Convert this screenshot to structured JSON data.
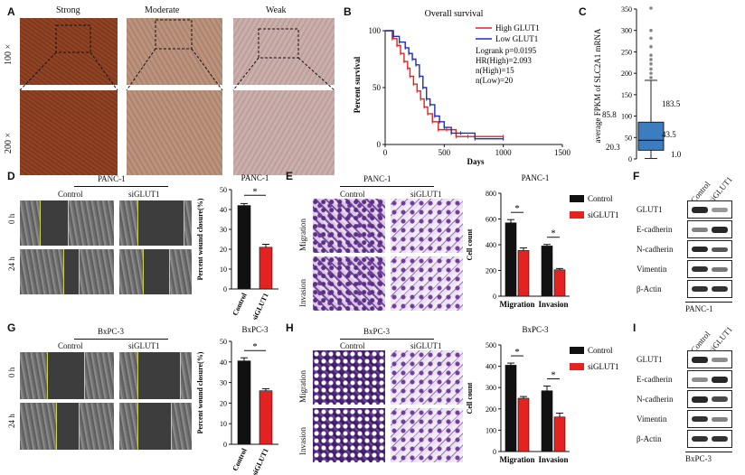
{
  "panels": {
    "A": {
      "label": "A",
      "cols": [
        "Strong",
        "Moderate",
        "Weak"
      ],
      "rows": [
        "100 ×",
        "200 ×"
      ]
    },
    "B": {
      "label": "B",
      "title": "Overall survival",
      "ylabel": "Percent survival",
      "xlabel": "Days",
      "xticks": [
        "0",
        "500",
        "1000",
        "1500"
      ],
      "yticks": [
        "0",
        "50",
        "100"
      ],
      "legend": [
        "High GLUT1",
        "Low GLUT1"
      ],
      "stats": [
        "Logrank p=0.0195",
        "HR(High)=2.093",
        "n(High)=15",
        "n(Low)=20"
      ],
      "colors": {
        "high": "#e32222",
        "low": "#1f2dbf"
      }
    },
    "C": {
      "label": "C",
      "ylabel": "average FPKM of SLC2A1 mRNA",
      "yticks": [
        "0",
        "50",
        "100",
        "150",
        "200",
        "250",
        "300",
        "350"
      ],
      "annotations": {
        "upper_whisker": "183.5",
        "median": "43.5",
        "min": "1.0",
        "q3": "85.8",
        "q1": "20.3"
      },
      "color": "#3b7dbf"
    },
    "D": {
      "label": "D",
      "cell_line": "PANC-1",
      "conditions": [
        "Control",
        "siGLUT1"
      ],
      "rows": [
        "0 h",
        "24 h"
      ],
      "chart_title": "PANC-1",
      "ylabel": "Percent wound closure(%)",
      "sig": "*"
    },
    "E": {
      "label": "E",
      "cell_line": "PANC-1",
      "conditions": [
        "Control",
        "siGLUT1"
      ],
      "rows": [
        "Migration",
        "Invasion"
      ],
      "chart_title": "PANC-1",
      "ylabel": "Cell count",
      "legend": [
        "Control",
        "siGLUT1"
      ],
      "sig": "*"
    },
    "F": {
      "label": "F",
      "lanes": [
        "Control",
        "siGLUT1"
      ],
      "proteins": [
        "GLUT1",
        "E-cadherin",
        "N-cadherin",
        "Vimentin",
        "β-Actin"
      ],
      "cell_line": "PANC-1"
    },
    "G": {
      "label": "G",
      "cell_line": "BxPC-3",
      "conditions": [
        "Control",
        "siGLUT1"
      ],
      "rows": [
        "0 h",
        "24 h"
      ],
      "chart_title": "BxPC-3",
      "ylabel": "Percent wound closure(%)",
      "sig": "*"
    },
    "H": {
      "label": "H",
      "cell_line": "BxPC-3",
      "conditions": [
        "Control",
        "siGLUT1"
      ],
      "rows": [
        "Migration",
        "Invasion"
      ],
      "chart_title": "BxPC-3",
      "ylabel": "Cell count",
      "legend": [
        "Control",
        "siGLUT1"
      ],
      "sig": "*"
    },
    "I": {
      "label": "I",
      "lanes": [
        "Control",
        "siGLUT1"
      ],
      "proteins": [
        "GLUT1",
        "E-cadherin",
        "N-cadherin",
        "Vimentin",
        "β-Actin"
      ],
      "cell_line": "BxPC-3"
    }
  },
  "chart_data": [
    {
      "id": "B",
      "type": "line",
      "title": "Overall survival",
      "xlabel": "Days",
      "ylabel": "Percent survival",
      "xlim": [
        0,
        1500
      ],
      "ylim": [
        0,
        100
      ],
      "series": [
        {
          "name": "High GLUT1",
          "x": [
            0,
            60,
            100,
            130,
            160,
            190,
            210,
            240,
            270,
            300,
            330,
            360,
            400,
            450,
            520,
            600,
            700,
            1000
          ],
          "y": [
            100,
            93,
            87,
            80,
            73,
            67,
            60,
            53,
            47,
            40,
            33,
            27,
            20,
            13,
            13,
            7,
            7,
            7
          ]
        },
        {
          "name": "Low GLUT1",
          "x": [
            0,
            70,
            120,
            170,
            200,
            230,
            260,
            290,
            320,
            350,
            380,
            420,
            460,
            500,
            560,
            640,
            760,
            1000
          ],
          "y": [
            100,
            95,
            90,
            85,
            80,
            75,
            70,
            60,
            50,
            40,
            35,
            25,
            20,
            15,
            10,
            10,
            5,
            5
          ]
        }
      ]
    },
    {
      "id": "C",
      "type": "box",
      "ylabel": "average FPKM of SLC2A1 mRNA",
      "ylim": [
        0,
        350
      ],
      "box": {
        "min": 1.0,
        "q1": 20.3,
        "median": 43.5,
        "q3": 85.8,
        "whisker_high": 183.5
      },
      "outliers": [
        190,
        200,
        210,
        222,
        232,
        242,
        262,
        282,
        300,
        352
      ]
    },
    {
      "id": "D",
      "type": "bar",
      "title": "PANC-1",
      "ylabel": "Percent wound closure(%)",
      "ylim": [
        0,
        50
      ],
      "yticks": [
        0,
        10,
        20,
        30,
        40,
        50
      ],
      "categories": [
        "Control",
        "siGLUT1"
      ],
      "values": [
        42,
        21
      ],
      "errors": [
        1.0,
        1.5
      ],
      "colors": [
        "#111111",
        "#e32222"
      ]
    },
    {
      "id": "E",
      "type": "bar",
      "title": "PANC-1",
      "ylabel": "Cell count",
      "ylim": [
        0,
        800
      ],
      "yticks": [
        0,
        200,
        400,
        600,
        800
      ],
      "categories": [
        "Migration",
        "Invasion"
      ],
      "series": [
        {
          "name": "Control",
          "values": [
            570,
            390
          ],
          "errors": [
            25,
            12
          ]
        },
        {
          "name": "siGLUT1",
          "values": [
            355,
            205
          ],
          "errors": [
            20,
            10
          ]
        }
      ],
      "colors": [
        "#111111",
        "#e32222"
      ]
    },
    {
      "id": "G",
      "type": "bar",
      "title": "BxPC-3",
      "ylabel": "Percent wound closure(%)",
      "ylim": [
        0,
        50
      ],
      "yticks": [
        0,
        10,
        20,
        30,
        40,
        50
      ],
      "categories": [
        "Control",
        "siGLUT1"
      ],
      "values": [
        40.5,
        26
      ],
      "errors": [
        1.5,
        1.0
      ],
      "colors": [
        "#111111",
        "#e32222"
      ]
    },
    {
      "id": "H",
      "type": "bar",
      "title": "BxPC-3",
      "ylabel": "Cell count",
      "ylim": [
        0,
        500
      ],
      "yticks": [
        0,
        100,
        200,
        300,
        400,
        500
      ],
      "categories": [
        "Migration",
        "Invasion"
      ],
      "series": [
        {
          "name": "Control",
          "values": [
            405,
            285
          ],
          "errors": [
            10,
            22
          ]
        },
        {
          "name": "siGLUT1",
          "values": [
            250,
            162
          ],
          "errors": [
            8,
            18
          ]
        }
      ],
      "colors": [
        "#111111",
        "#e32222"
      ]
    }
  ]
}
